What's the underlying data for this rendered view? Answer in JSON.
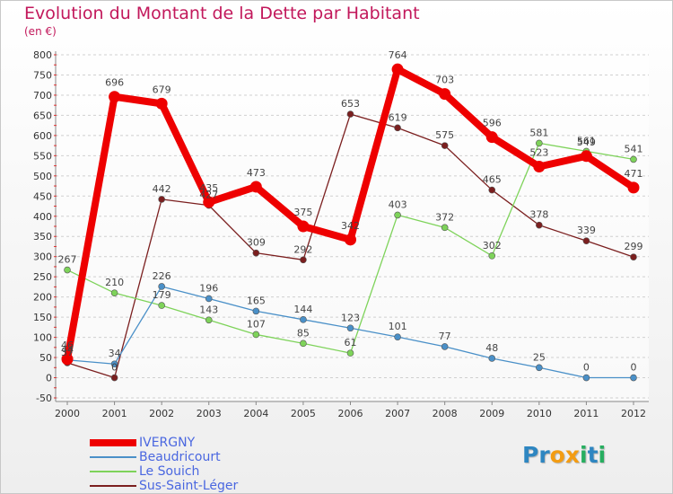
{
  "header": {
    "title": "Evolution du Montant de la Dette par Habitant",
    "subtitle": "(en €)"
  },
  "logo": {
    "text": "Proxiti",
    "letters": [
      {
        "ch": "P",
        "color": "#2e86c1"
      },
      {
        "ch": "r",
        "color": "#2e86c1"
      },
      {
        "ch": "o",
        "color": "#f39c12"
      },
      {
        "ch": "x",
        "color": "#f39c12"
      },
      {
        "ch": "i",
        "color": "#27ae60"
      },
      {
        "ch": "t",
        "color": "#2e86c1"
      },
      {
        "ch": "i",
        "color": "#27ae60"
      }
    ]
  },
  "chart_data": {
    "type": "line",
    "title": "Evolution du Montant de la Dette par Habitant",
    "subtitle": "(en €)",
    "xlabel": "",
    "ylabel": "",
    "ylim": [
      -50,
      800
    ],
    "yticks": [
      -50,
      0,
      50,
      100,
      150,
      200,
      250,
      300,
      350,
      400,
      450,
      500,
      550,
      600,
      650,
      700,
      750,
      800
    ],
    "x": [
      "2000",
      "2001",
      "2002",
      "2003",
      "2004",
      "2005",
      "2006",
      "2007",
      "2008",
      "2009",
      "2010",
      "2011",
      "2012"
    ],
    "grid": "horizontal-dashed",
    "legend_position": "bottom-left",
    "series": [
      {
        "name": "IVERGNY",
        "color": "#ee0000",
        "values": [
          46,
          696,
          679,
          435,
          473,
          375,
          342,
          764,
          703,
          596,
          523,
          549,
          471
        ]
      },
      {
        "name": "Beaudricourt",
        "color": "#4a90c8",
        "values": [
          44,
          34,
          226,
          196,
          165,
          144,
          123,
          101,
          77,
          48,
          25,
          0,
          0
        ]
      },
      {
        "name": "Le Souich",
        "color": "#7ed35a",
        "values": [
          267,
          210,
          179,
          143,
          107,
          85,
          61,
          403,
          372,
          302,
          581,
          561,
          541
        ]
      },
      {
        "name": "Sus-Saint-Léger",
        "color": "#7b1f1f",
        "values": [
          37,
          0,
          442,
          427,
          309,
          292,
          653,
          619,
          575,
          465,
          378,
          339,
          299
        ]
      }
    ]
  }
}
